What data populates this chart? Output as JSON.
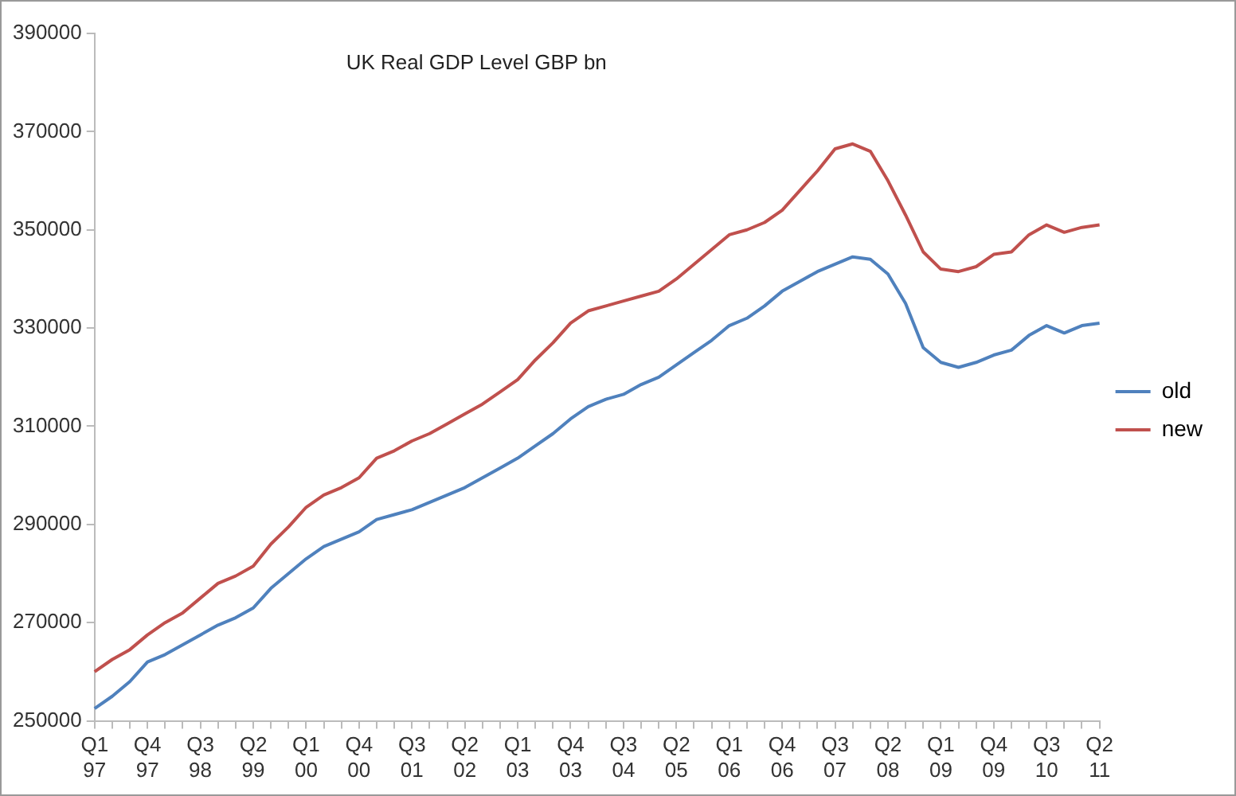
{
  "chart_data": {
    "type": "line",
    "title": "UK Real GDP Level GBP bn",
    "categories": [
      "Q1 97",
      null,
      null,
      "Q4 97",
      null,
      null,
      "Q3 98",
      null,
      null,
      "Q2 99",
      null,
      null,
      "Q1 00",
      null,
      null,
      "Q4 00",
      null,
      null,
      "Q3 01",
      null,
      null,
      "Q2 02",
      null,
      null,
      "Q1 03",
      null,
      null,
      "Q4 03",
      null,
      null,
      "Q3 04",
      null,
      null,
      "Q2 05",
      null,
      null,
      "Q1 06",
      null,
      null,
      "Q4 06",
      null,
      null,
      "Q3 07",
      null,
      null,
      "Q2 08",
      null,
      null,
      "Q1 09",
      null,
      null,
      "Q4 09",
      null,
      null,
      "Q3 10",
      null,
      null,
      "Q2 11"
    ],
    "series": [
      {
        "name": "old",
        "color": "#4f81bd",
        "values": [
          252500,
          255000,
          258000,
          262000,
          263500,
          265500,
          267500,
          269500,
          271000,
          273000,
          277000,
          280000,
          283000,
          285500,
          287000,
          288500,
          291000,
          292000,
          293000,
          294500,
          296000,
          297500,
          299500,
          301500,
          303500,
          306000,
          308500,
          311500,
          314000,
          315500,
          316500,
          318500,
          320000,
          322500,
          325000,
          327500,
          330500,
          332000,
          334500,
          337500,
          339500,
          341500,
          343000,
          344500,
          344000,
          341000,
          335000,
          326000,
          323000,
          322000,
          323000,
          324500,
          325500,
          328500,
          330500,
          329000,
          330500,
          331000
        ]
      },
      {
        "name": "new",
        "color": "#c0504d",
        "values": [
          260000,
          262500,
          264500,
          267500,
          270000,
          272000,
          275000,
          278000,
          279500,
          281500,
          286000,
          289500,
          293500,
          296000,
          297500,
          299500,
          303500,
          305000,
          307000,
          308500,
          310500,
          312500,
          314500,
          317000,
          319500,
          323500,
          327000,
          331000,
          333500,
          334500,
          335500,
          336500,
          337500,
          340000,
          343000,
          346000,
          349000,
          350000,
          351500,
          354000,
          358000,
          362000,
          366500,
          367500,
          366000,
          360000,
          353000,
          345500,
          342000,
          341500,
          342500,
          345000,
          345500,
          349000,
          351000,
          349500,
          350500,
          351000
        ]
      }
    ],
    "ylim": [
      250000,
      390000
    ],
    "yticks": [
      250000,
      270000,
      290000,
      310000,
      330000,
      350000,
      370000,
      390000
    ],
    "grid": false,
    "legend": "right",
    "marker": "none",
    "line_style": "solid"
  }
}
